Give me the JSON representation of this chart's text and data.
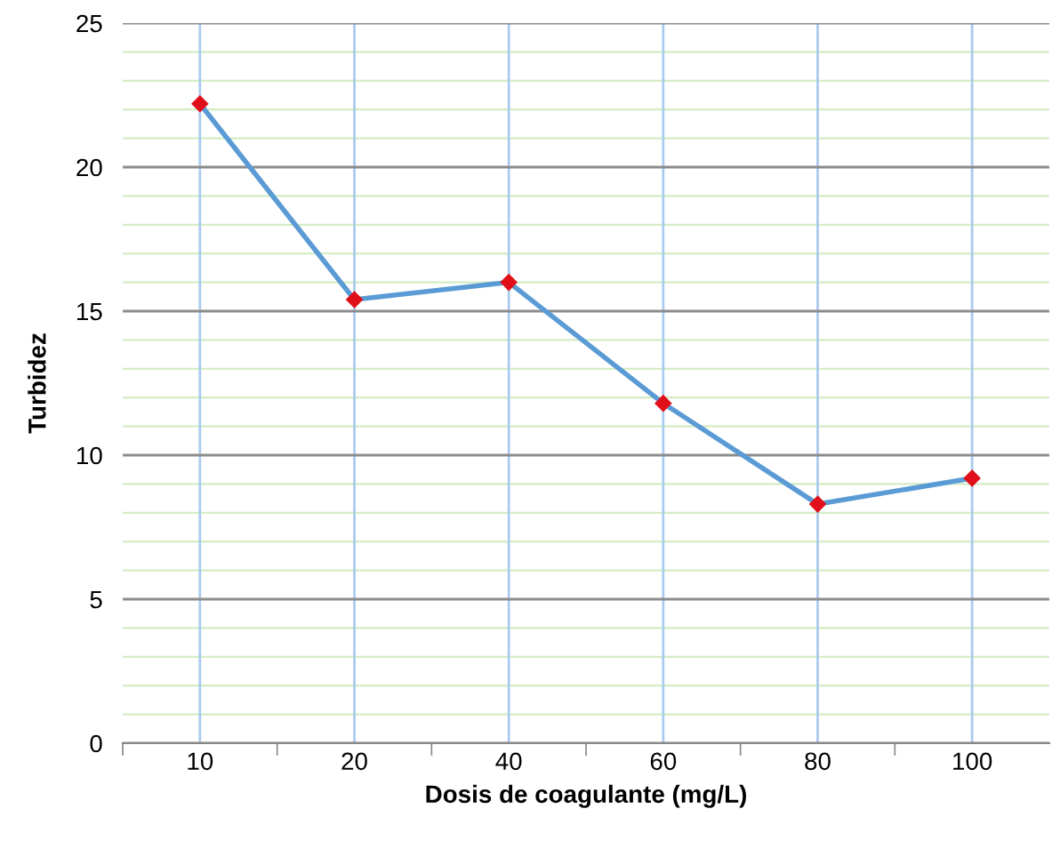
{
  "chart_data": {
    "type": "line",
    "xlabel": "Dosis de coagulante (mg/L)",
    "ylabel": "Turbidez",
    "categories": [
      "10",
      "20",
      "40",
      "60",
      "80",
      "100"
    ],
    "series": [
      {
        "color": "#5b9bd5",
        "values": [
          22.2,
          15.4,
          16.0,
          11.8,
          8.3,
          9.2
        ]
      }
    ],
    "marker": "diamond",
    "line_style": "solid",
    "ylim": [
      0,
      25
    ],
    "yticks": [
      0,
      {
        "value": 1,
        "label": null
      },
      {
        "value": 2,
        "label": null
      },
      {
        "value": 3,
        "label": null
      },
      {
        "value": 4,
        "label": null
      },
      5,
      {
        "value": 6,
        "label": null
      },
      {
        "value": 7,
        "label": null
      },
      {
        "value": 8,
        "label": null
      },
      {
        "value": 9,
        "label": null
      },
      10,
      {
        "value": 11,
        "label": null
      },
      {
        "value": 12,
        "label": null
      },
      {
        "value": 13,
        "label": null
      },
      {
        "value": 14,
        "label": null
      },
      15,
      {
        "value": 16,
        "label": null
      },
      {
        "value": 17,
        "label": null
      },
      {
        "value": 18,
        "label": null
      },
      {
        "value": 19,
        "label": null
      },
      20,
      {
        "value": 21,
        "label": null
      },
      {
        "value": 22,
        "label": null
      },
      {
        "value": 23,
        "label": null
      },
      {
        "value": 24,
        "label": null
      },
      25
    ],
    "grid": true,
    "legend": false
  }
}
